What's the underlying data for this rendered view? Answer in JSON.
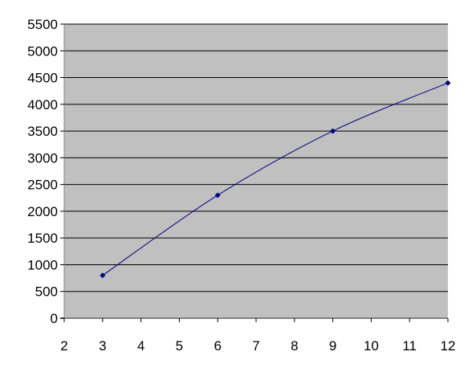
{
  "chart_data": {
    "type": "scatter",
    "title": "",
    "xlabel": "",
    "ylabel": "",
    "xlim": [
      2,
      12
    ],
    "ylim": [
      0,
      5500
    ],
    "x_ticks": [
      2,
      3,
      4,
      5,
      6,
      7,
      8,
      9,
      10,
      11,
      12
    ],
    "y_ticks": [
      0,
      500,
      1000,
      1500,
      2000,
      2500,
      3000,
      3500,
      4000,
      4500,
      5000,
      5500
    ],
    "grid": "horizontal",
    "legend": "none",
    "series": [
      {
        "x": [
          3,
          6,
          9,
          12
        ],
        "y": [
          800,
          2300,
          3500,
          4400
        ],
        "line": "smoothed",
        "marker": "diamond"
      }
    ]
  },
  "colors": {
    "plot_background": "#c0c0c0",
    "gridline": "#000000",
    "series": "#000080"
  }
}
